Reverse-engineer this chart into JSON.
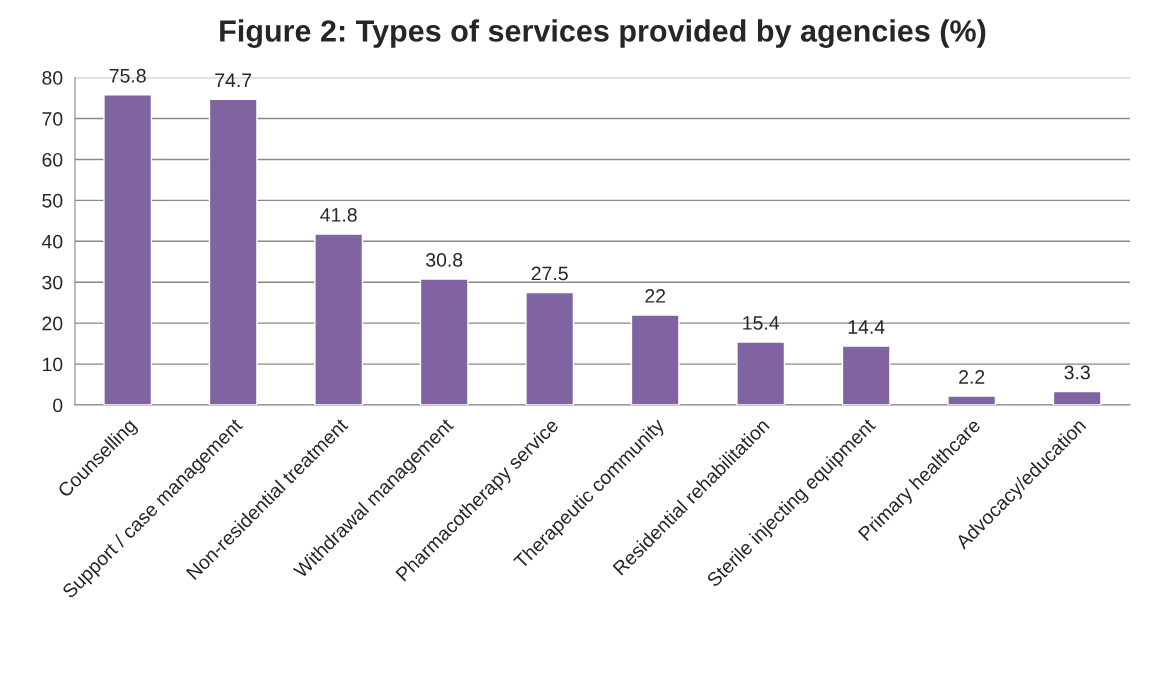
{
  "chart_data": {
    "type": "bar",
    "title": "Figure 2: Types of services provided by agencies (%)",
    "categories": [
      "Counselling",
      "Support / case management",
      "Non-residential treatment",
      "Withdrawal management",
      "Pharmacotherapy service",
      "Therapeutic community",
      "Residential rehabilitation",
      "Sterile injecting equipment",
      "Primary healthcare",
      "Advocacy/education"
    ],
    "values": [
      75.8,
      74.7,
      41.8,
      30.8,
      27.5,
      22,
      15.4,
      14.4,
      2.2,
      3.3
    ],
    "color": "#8064a2",
    "ylim": [
      0,
      80
    ],
    "yticks": [
      0,
      10,
      20,
      30,
      40,
      50,
      60,
      70,
      80
    ],
    "grid": "y",
    "data_labels": true
  }
}
